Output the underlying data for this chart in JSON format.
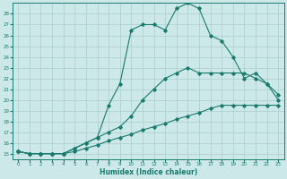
{
  "xlabel": "Humidex (Indice chaleur)",
  "background_color": "#cce8e8",
  "grid_color": "#aacece",
  "line_color": "#1a7a6e",
  "xlim": [
    -0.5,
    23.5
  ],
  "ylim": [
    14.5,
    29.0
  ],
  "yticks": [
    15,
    16,
    17,
    18,
    19,
    20,
    21,
    22,
    23,
    24,
    25,
    26,
    27,
    28
  ],
  "xticks": [
    0,
    1,
    2,
    3,
    4,
    5,
    6,
    7,
    8,
    9,
    10,
    11,
    12,
    13,
    14,
    15,
    16,
    17,
    18,
    19,
    20,
    21,
    22,
    23
  ],
  "series": [
    {
      "x": [
        0,
        1,
        2,
        3,
        4,
        5,
        6,
        7,
        8,
        9,
        10,
        11,
        12,
        13,
        14,
        15,
        16,
        17,
        18,
        19,
        20,
        21,
        22,
        23
      ],
      "y": [
        15.2,
        15.0,
        15.0,
        15.0,
        15.0,
        15.2,
        15.5,
        15.8,
        16.2,
        16.5,
        16.8,
        17.2,
        17.5,
        17.8,
        18.2,
        18.5,
        18.8,
        19.2,
        19.5,
        19.5,
        19.5,
        19.5,
        19.5,
        19.5
      ]
    },
    {
      "x": [
        0,
        1,
        2,
        3,
        4,
        5,
        6,
        7,
        8,
        9,
        10,
        11,
        12,
        13,
        14,
        15,
        16,
        17,
        18,
        19,
        20,
        21,
        22,
        23
      ],
      "y": [
        15.2,
        15.0,
        15.0,
        15.0,
        15.0,
        15.5,
        16.0,
        16.5,
        17.0,
        17.5,
        18.5,
        20.0,
        21.0,
        22.0,
        22.5,
        23.0,
        22.5,
        22.5,
        22.5,
        22.5,
        22.5,
        22.0,
        21.5,
        20.0
      ]
    },
    {
      "x": [
        0,
        1,
        2,
        3,
        4,
        5,
        6,
        7,
        8,
        9,
        10,
        11,
        12,
        13,
        14,
        15,
        16,
        17,
        18,
        19,
        20,
        21,
        22,
        23
      ],
      "y": [
        15.2,
        15.0,
        15.0,
        15.0,
        15.0,
        15.5,
        16.0,
        16.5,
        19.5,
        21.5,
        26.5,
        27.0,
        27.0,
        26.5,
        28.5,
        29.0,
        28.5,
        26.0,
        25.5,
        24.0,
        22.0,
        22.5,
        21.5,
        20.5
      ]
    }
  ]
}
